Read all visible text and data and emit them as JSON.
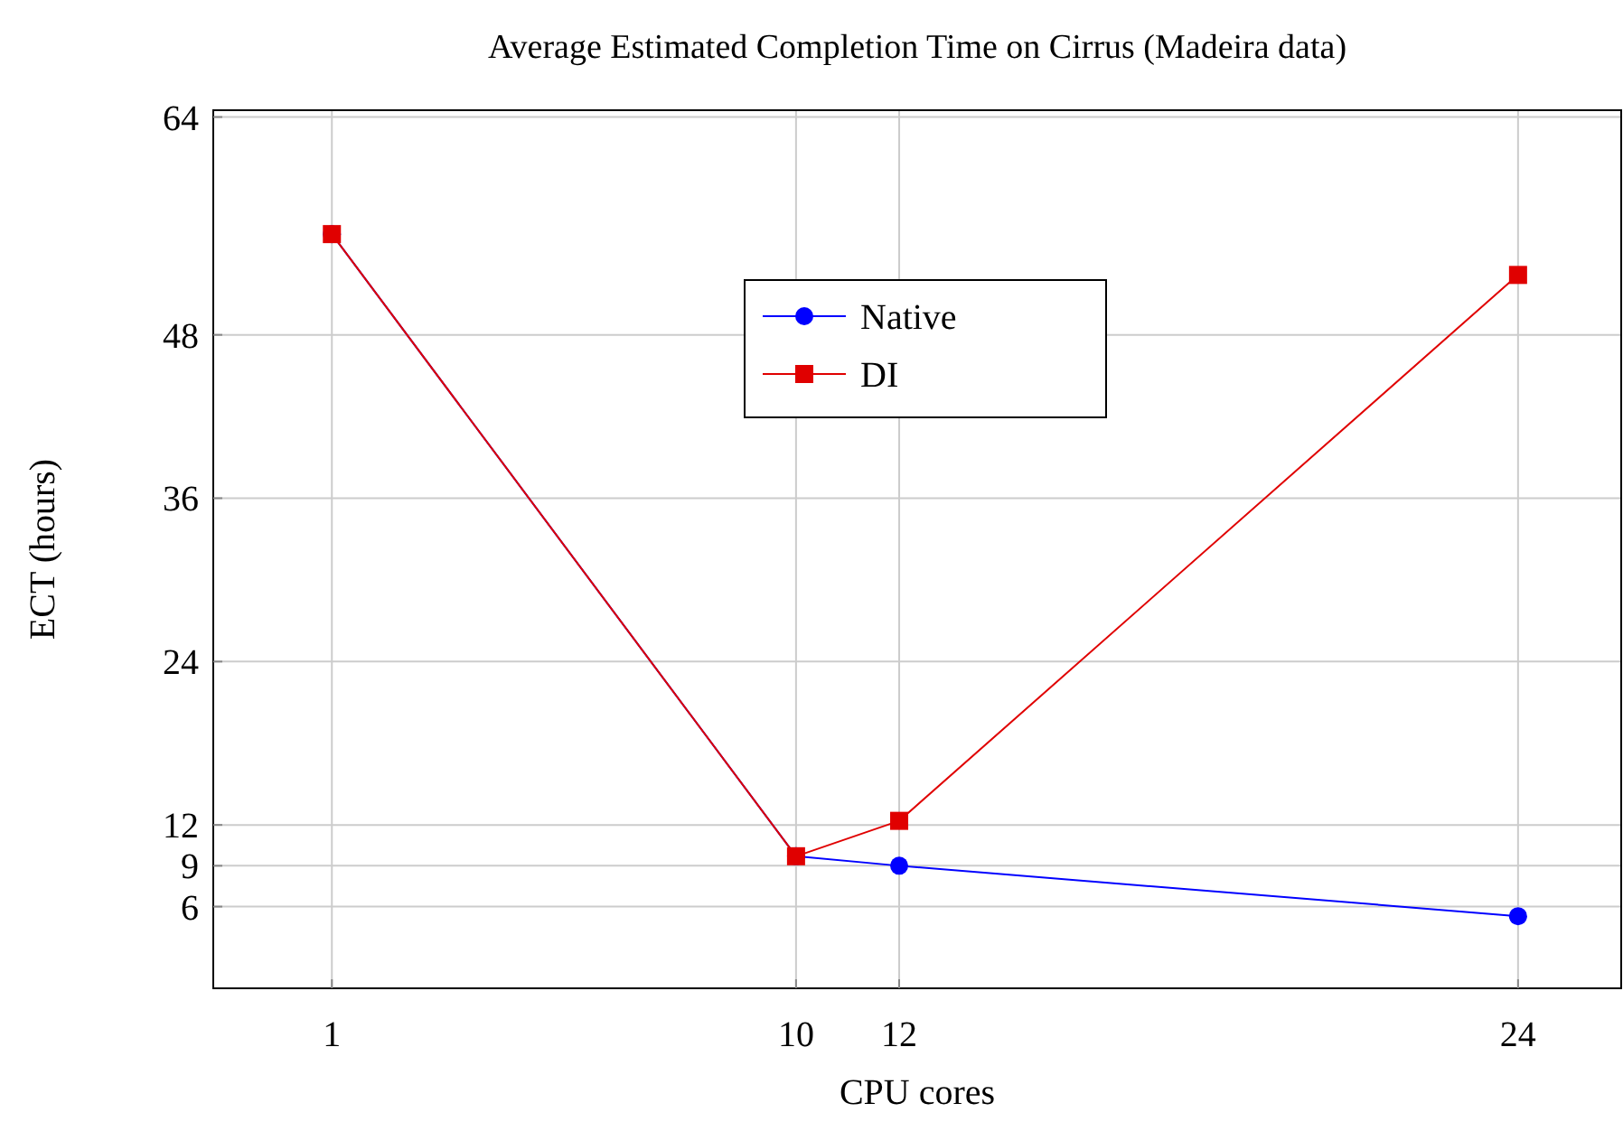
{
  "chart_data": {
    "type": "line",
    "title": "Average Estimated Completion Time on Cirrus (Madeira data)",
    "xlabel": "CPU cores",
    "ylabel": "ECT (hours)",
    "x": [
      1,
      10,
      12,
      24
    ],
    "xlim": [
      -1.3,
      26
    ],
    "xticks": [
      1,
      10,
      12,
      24
    ],
    "ylim": [
      0,
      64.5
    ],
    "yticks": [
      6,
      9,
      12,
      24,
      36,
      48,
      64
    ],
    "series": [
      {
        "name": "Native",
        "color": "#0000ff",
        "marker": "circle",
        "values": [
          55.4,
          9.7,
          9.0,
          5.3
        ]
      },
      {
        "name": "DI",
        "color": "#e00000",
        "marker": "square",
        "values": [
          55.4,
          9.7,
          12.3,
          52.4
        ]
      }
    ],
    "grid": true,
    "legend": "top",
    "line_style": "solid"
  }
}
